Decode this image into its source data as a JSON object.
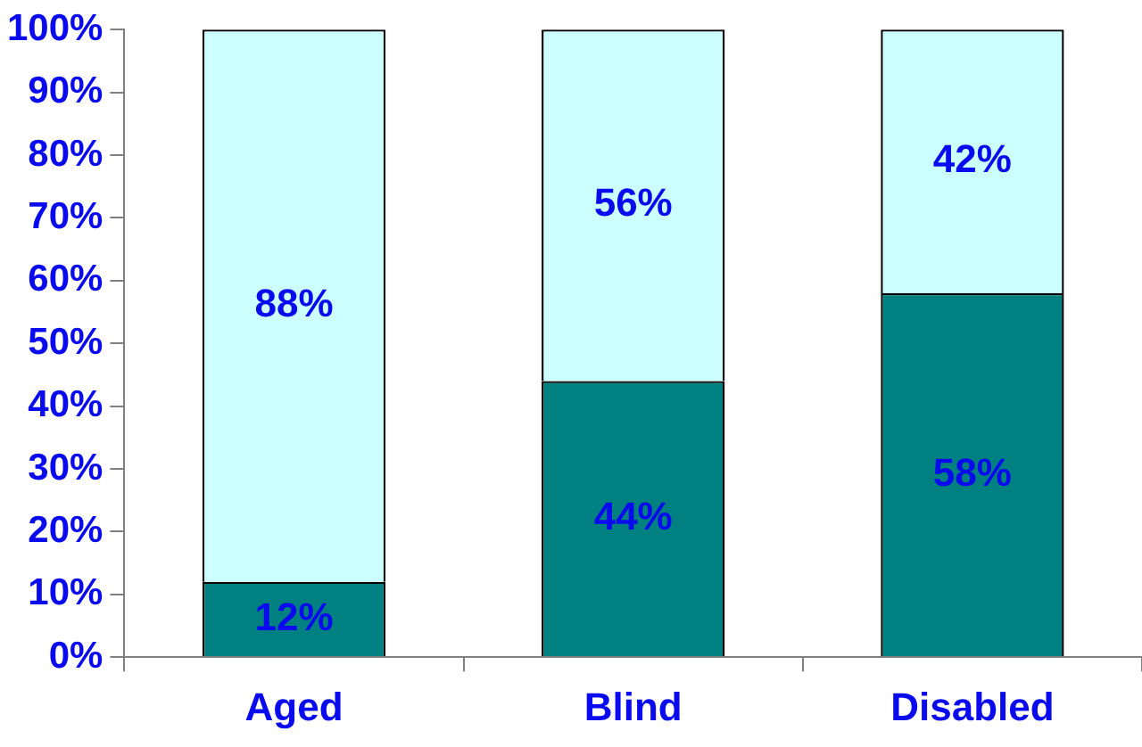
{
  "chart_data": {
    "type": "bar",
    "stacked": true,
    "categories": [
      "Aged",
      "Blind",
      "Disabled"
    ],
    "series": [
      {
        "color": "#008080",
        "values": [
          12,
          44,
          58
        ],
        "value_labels": [
          "12%",
          "44%",
          "58%"
        ]
      },
      {
        "color": "#ccffff",
        "values": [
          88,
          56,
          42
        ],
        "value_labels": [
          "88%",
          "56%",
          "42%"
        ]
      }
    ],
    "ylim": [
      0,
      100
    ],
    "yticks": [
      {
        "value": 0,
        "label": "0%"
      },
      {
        "value": 10,
        "label": "10%"
      },
      {
        "value": 20,
        "label": "20%"
      },
      {
        "value": 30,
        "label": "30%"
      },
      {
        "value": 40,
        "label": "40%"
      },
      {
        "value": 50,
        "label": "50%"
      },
      {
        "value": 60,
        "label": "60%"
      },
      {
        "value": 70,
        "label": "70%"
      },
      {
        "value": 80,
        "label": "80%"
      },
      {
        "value": 90,
        "label": "90%"
      },
      {
        "value": 100,
        "label": "100%"
      }
    ],
    "grid": false,
    "legend": false
  }
}
